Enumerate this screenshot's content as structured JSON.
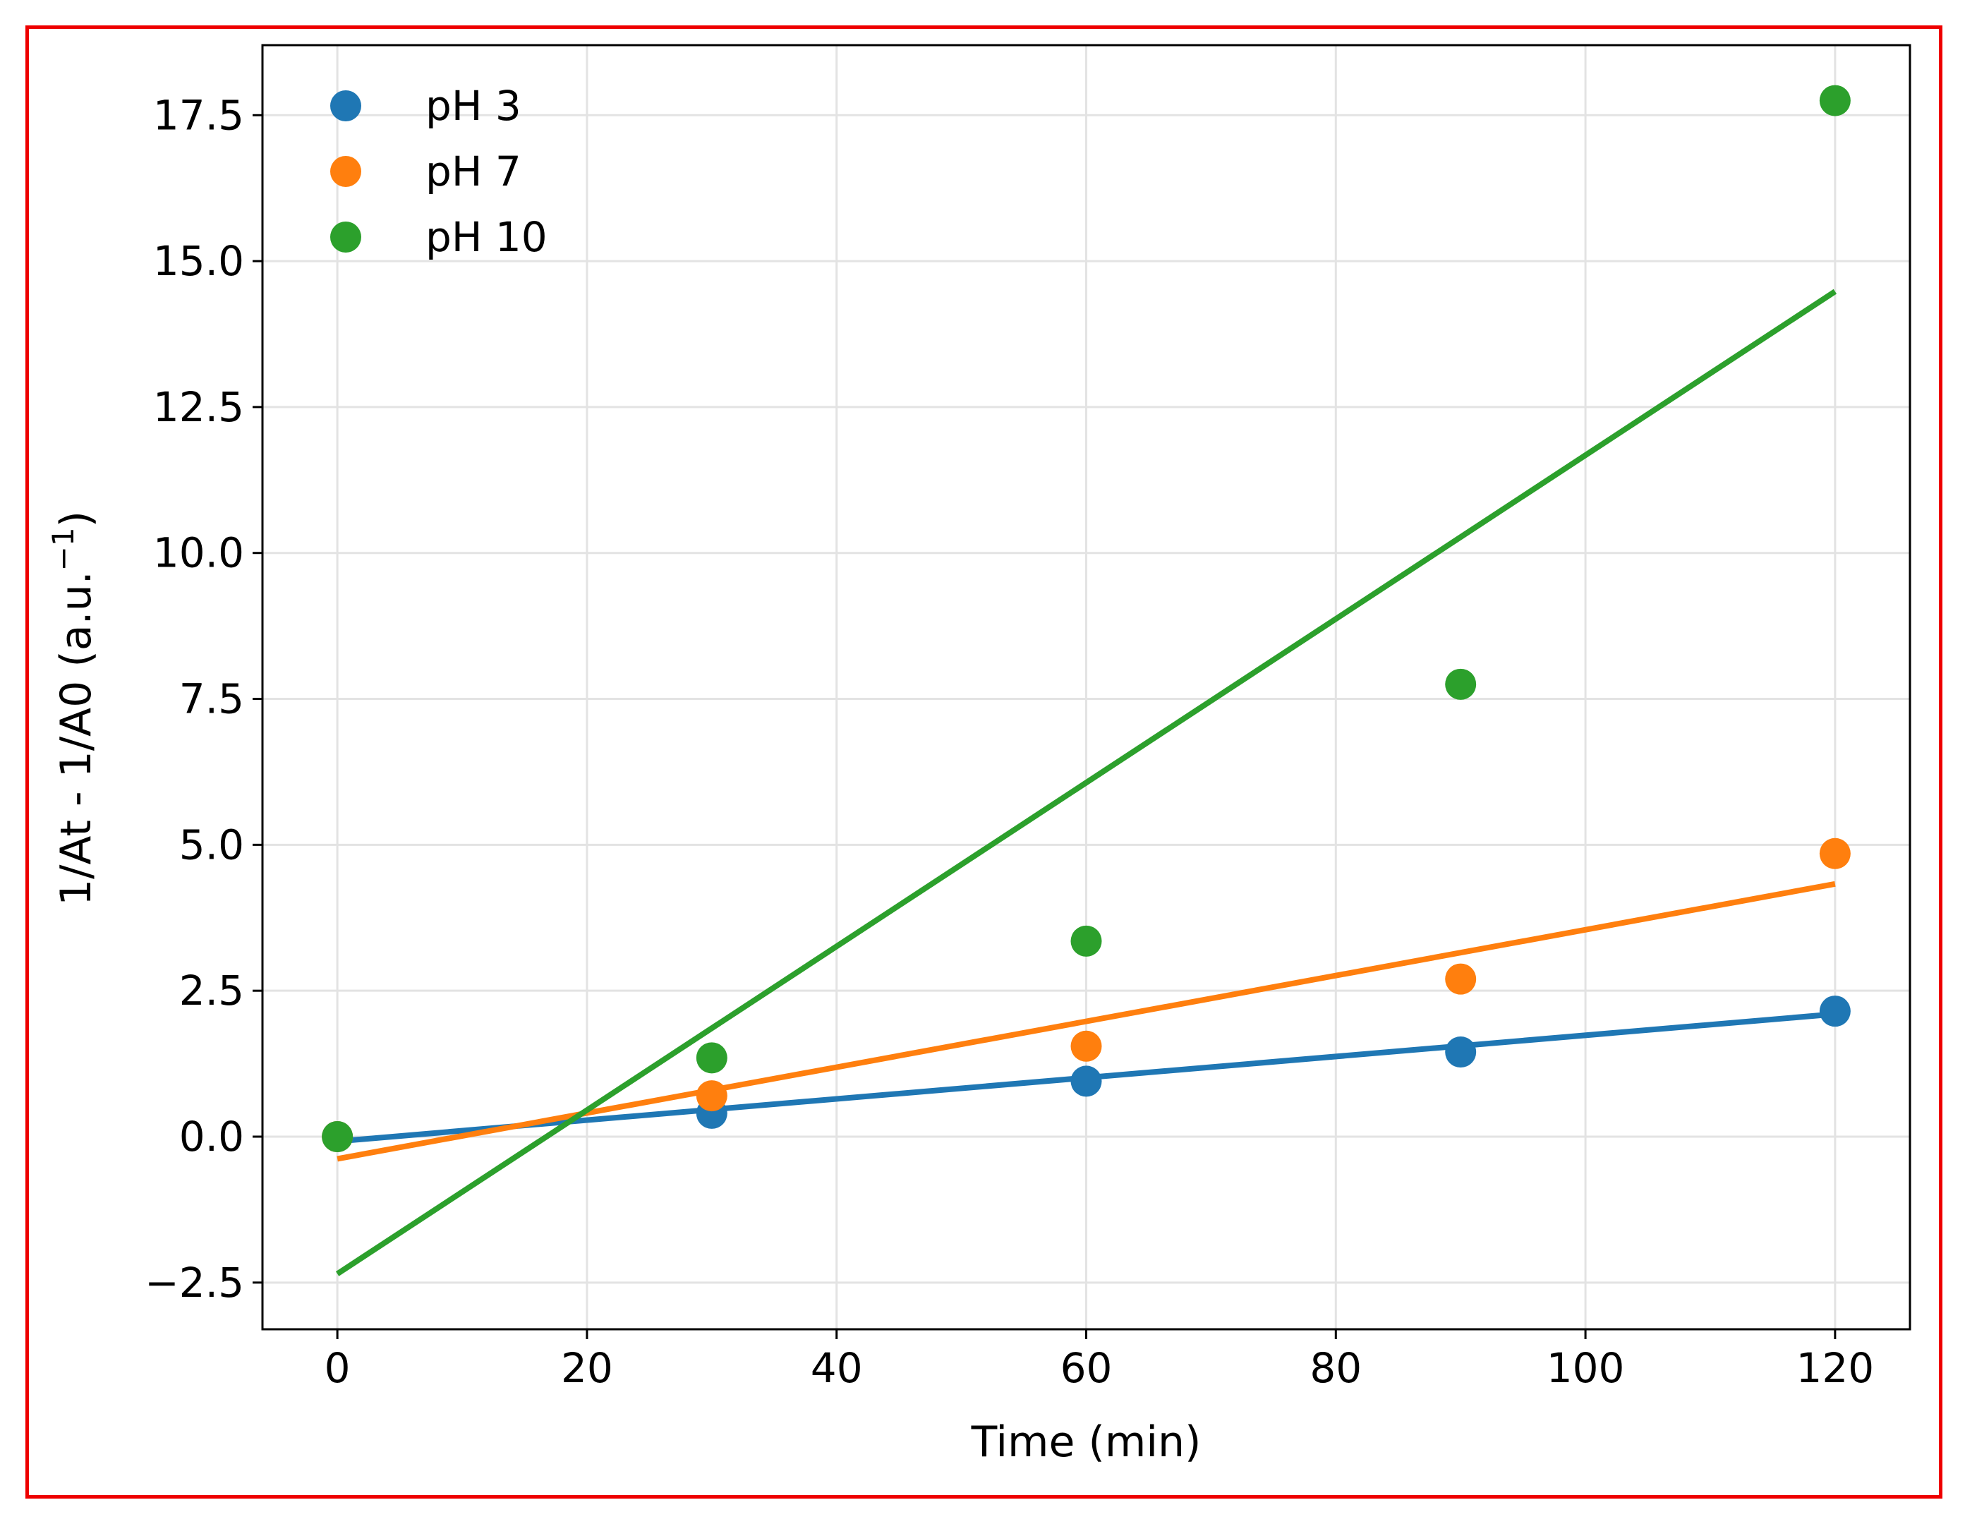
{
  "chart_data": {
    "type": "scatter",
    "title": "",
    "xlabel": "Time (min)",
    "ylabel_main": "1/At - 1/A0 (a.u.",
    "ylabel_sup": "−1",
    "ylabel_close": ")",
    "xlim": [
      -6,
      126
    ],
    "ylim": [
      -3.3,
      18.7
    ],
    "xticks": [
      0,
      20,
      40,
      60,
      80,
      100,
      120
    ],
    "xtick_labels": [
      "0",
      "20",
      "40",
      "60",
      "80",
      "100",
      "120"
    ],
    "yticks": [
      -2.5,
      0,
      2.5,
      5,
      7.5,
      10,
      12.5,
      15,
      17.5
    ],
    "ytick_labels": [
      "−2.5",
      "0.0",
      "2.5",
      "5.0",
      "7.5",
      "10.0",
      "12.5",
      "15.0",
      "17.5"
    ],
    "grid": true,
    "legend_position": "top-left",
    "series": [
      {
        "name": "pH 3",
        "color": "#1f77b4",
        "x": [
          0,
          30,
          60,
          90,
          120
        ],
        "y": [
          0.0,
          0.4,
          0.95,
          1.45,
          2.15
        ],
        "fit": {
          "x": [
            0,
            120
          ],
          "y": [
            -0.08,
            2.1
          ]
        }
      },
      {
        "name": "pH 7",
        "color": "#ff7f0e",
        "x": [
          0,
          30,
          60,
          90,
          120
        ],
        "y": [
          0.0,
          0.7,
          1.55,
          2.7,
          4.85
        ],
        "fit": {
          "x": [
            0,
            120
          ],
          "y": [
            -0.38,
            4.33
          ]
        }
      },
      {
        "name": "pH 10",
        "color": "#2ca02c",
        "x": [
          0,
          30,
          60,
          90,
          120
        ],
        "y": [
          0.0,
          1.35,
          3.35,
          7.75,
          17.75
        ],
        "fit": {
          "x": [
            0,
            120
          ],
          "y": [
            -2.35,
            14.48
          ]
        }
      }
    ]
  }
}
